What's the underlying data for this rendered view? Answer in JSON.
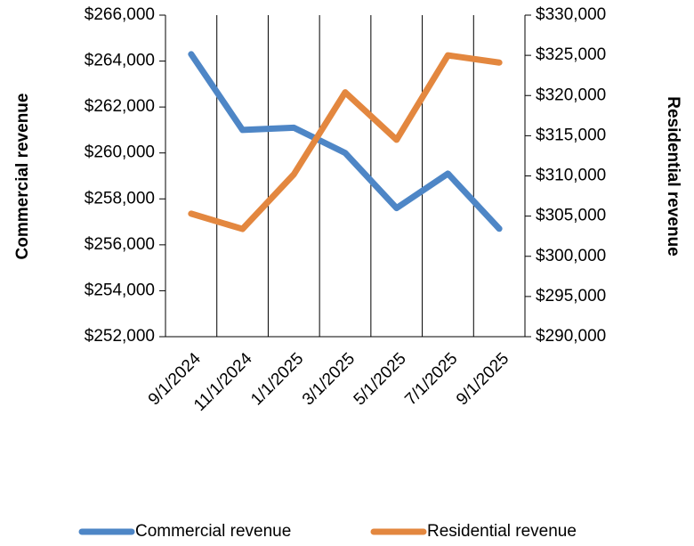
{
  "chart_data": {
    "type": "line",
    "categories": [
      "9/1/2024",
      "11/1/2024",
      "1/1/2025",
      "3/1/2025",
      "5/1/2025",
      "7/1/2025",
      "9/1/2025"
    ],
    "series": [
      {
        "name": "Commercial revenue",
        "color": "#4e86c6",
        "axis": "y",
        "values": [
          264300,
          261000,
          261100,
          260000,
          257600,
          259100,
          256700
        ]
      },
      {
        "name": "Residential revenue",
        "color": "#e3873f",
        "axis": "y2",
        "values": [
          305300,
          303400,
          310200,
          320400,
          314500,
          325000,
          324100
        ]
      }
    ],
    "ylabel": "Commercial revenue",
    "y2label": "Residential revenue",
    "ylim": [
      252000,
      266000
    ],
    "yticks": [
      {
        "value": 252000,
        "label": "$252,000"
      },
      {
        "value": 254000,
        "label": "$254,000"
      },
      {
        "value": 256000,
        "label": "$256,000"
      },
      {
        "value": 258000,
        "label": "$258,000"
      },
      {
        "value": 260000,
        "label": "$260,000"
      },
      {
        "value": 262000,
        "label": "$262,000"
      },
      {
        "value": 264000,
        "label": "$264,000"
      },
      {
        "value": 266000,
        "label": "$266,000"
      }
    ],
    "y2lim": [
      290000,
      330000
    ],
    "y2ticks": [
      {
        "value": 290000,
        "label": "$290,000"
      },
      {
        "value": 295000,
        "label": "$295,000"
      },
      {
        "value": 300000,
        "label": "$300,000"
      },
      {
        "value": 305000,
        "label": "$305,000"
      },
      {
        "value": 310000,
        "label": "$310,000"
      },
      {
        "value": 315000,
        "label": "$315,000"
      },
      {
        "value": 320000,
        "label": "$320,000"
      },
      {
        "value": 325000,
        "label": "$325,000"
      },
      {
        "value": 330000,
        "label": "$330,000"
      }
    ],
    "grid": false,
    "legend": "bottom"
  }
}
